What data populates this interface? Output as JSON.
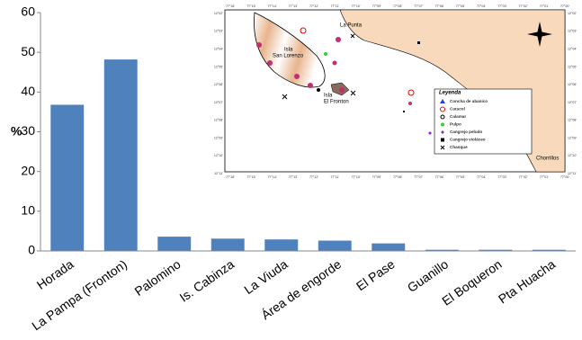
{
  "chart_data": {
    "type": "bar",
    "ylabel": "%",
    "categories": [
      "Horada",
      "La Pampa (Fronton)",
      "Palomino",
      "Is. Cabinza",
      "La Viuda",
      "Área de engorde",
      "El Pase",
      "Guanillo",
      "El Boqueron",
      "Pta Huacha"
    ],
    "values": [
      36.8,
      48.2,
      3.6,
      3.1,
      2.9,
      2.6,
      1.9,
      0.3,
      0.3,
      0.3
    ],
    "color": "#4f81bd",
    "ylim": [
      0,
      60
    ],
    "yticks": [
      0,
      10,
      20,
      30,
      40,
      50,
      60
    ],
    "grid": false
  },
  "map": {
    "places": {
      "island1": "Isla",
      "island1b": "San Lorenzo",
      "punta": "La Punta",
      "island2": "Isla",
      "island2b": "El Fronton",
      "chorrillos": "Chorrillos"
    },
    "lon_labels": [
      "77°16'",
      "77°15'",
      "77°14'",
      "77°13'",
      "77°12'",
      "77°11'",
      "77°10'",
      "77°09'",
      "77°08'",
      "77°07'",
      "77°06'",
      "77°05'",
      "77°04'",
      "77°03'",
      "77°02'",
      "77°01'",
      "77°00'"
    ],
    "lat_labels": [
      "12°02'",
      "12°03'",
      "12°04'",
      "12°05'",
      "12°06'",
      "12°07'",
      "12°08'",
      "12°09'",
      "12°10'",
      "12°11'"
    ],
    "legend": {
      "title": "Leyenda",
      "items": [
        "Concha de abanico",
        "Caracol",
        "Calamar",
        "Pulpo",
        "Cangrejo peludo",
        "Cangrejo violáceo",
        "Chanque"
      ]
    }
  }
}
